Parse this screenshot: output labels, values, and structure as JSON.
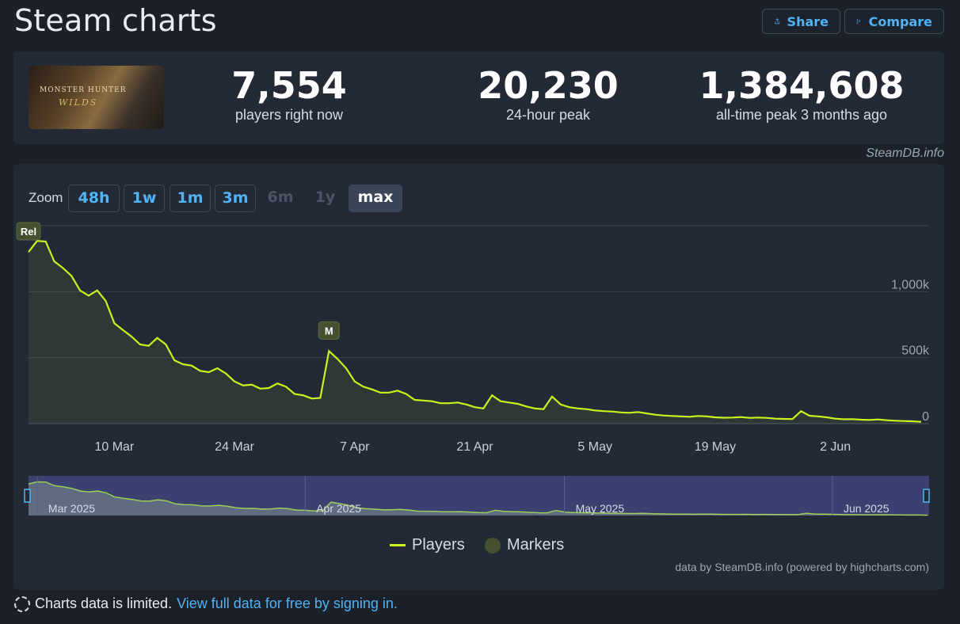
{
  "header": {
    "title": "Steam charts",
    "share_label": "Share",
    "compare_label": "Compare"
  },
  "stats": {
    "game_logo_text": "MONSTER HUNTER",
    "game_logo_sub": "WILDS",
    "now_value": "7,554",
    "now_label": "players right now",
    "peak24_value": "20,230",
    "peak24_label": "24-hour peak",
    "alltime_value": "1,384,608",
    "alltime_label": "all-time peak 3 months ago"
  },
  "credit": "SteamDB.info",
  "zoom": {
    "label": "Zoom",
    "buttons": [
      {
        "label": "48h",
        "state": "enabled"
      },
      {
        "label": "1w",
        "state": "enabled"
      },
      {
        "label": "1m",
        "state": "enabled"
      },
      {
        "label": "3m",
        "state": "enabled"
      },
      {
        "label": "6m",
        "state": "disabled"
      },
      {
        "label": "1y",
        "state": "disabled"
      },
      {
        "label": "max",
        "state": "active"
      }
    ]
  },
  "chart_data": {
    "type": "line",
    "series": [
      {
        "name": "Players",
        "color": "#cbf21d"
      }
    ],
    "markers": [
      {
        "label": "Rel",
        "date": "2025-02-28"
      },
      {
        "label": "M",
        "date": "2025-04-04"
      }
    ],
    "x_ticks": [
      "10 Mar",
      "24 Mar",
      "7 Apr",
      "21 Apr",
      "5 May",
      "19 May",
      "2 Jun"
    ],
    "y_ticks": [
      "0",
      "500k",
      "1,000k"
    ],
    "ylim": [
      0,
      1500000
    ],
    "grid": true,
    "points": [
      [
        "2025-02-28",
        1300000
      ],
      [
        "2025-03-01",
        1385000
      ],
      [
        "2025-03-02",
        1380000
      ],
      [
        "2025-03-03",
        1230000
      ],
      [
        "2025-03-04",
        1180000
      ],
      [
        "2025-03-05",
        1120000
      ],
      [
        "2025-03-06",
        1010000
      ],
      [
        "2025-03-07",
        970000
      ],
      [
        "2025-03-08",
        1010000
      ],
      [
        "2025-03-09",
        930000
      ],
      [
        "2025-03-10",
        760000
      ],
      [
        "2025-03-11",
        710000
      ],
      [
        "2025-03-12",
        660000
      ],
      [
        "2025-03-13",
        600000
      ],
      [
        "2025-03-14",
        590000
      ],
      [
        "2025-03-15",
        650000
      ],
      [
        "2025-03-16",
        600000
      ],
      [
        "2025-03-17",
        480000
      ],
      [
        "2025-03-18",
        450000
      ],
      [
        "2025-03-19",
        440000
      ],
      [
        "2025-03-20",
        400000
      ],
      [
        "2025-03-21",
        390000
      ],
      [
        "2025-03-22",
        420000
      ],
      [
        "2025-03-23",
        380000
      ],
      [
        "2025-03-24",
        320000
      ],
      [
        "2025-03-25",
        290000
      ],
      [
        "2025-03-26",
        295000
      ],
      [
        "2025-03-27",
        265000
      ],
      [
        "2025-03-28",
        270000
      ],
      [
        "2025-03-29",
        305000
      ],
      [
        "2025-03-30",
        280000
      ],
      [
        "2025-03-31",
        225000
      ],
      [
        "2025-04-01",
        215000
      ],
      [
        "2025-04-02",
        190000
      ],
      [
        "2025-04-03",
        195000
      ],
      [
        "2025-04-04",
        550000
      ],
      [
        "2025-04-05",
        490000
      ],
      [
        "2025-04-06",
        420000
      ],
      [
        "2025-04-07",
        320000
      ],
      [
        "2025-04-08",
        280000
      ],
      [
        "2025-04-09",
        260000
      ],
      [
        "2025-04-10",
        235000
      ],
      [
        "2025-04-11",
        235000
      ],
      [
        "2025-04-12",
        250000
      ],
      [
        "2025-04-13",
        225000
      ],
      [
        "2025-04-14",
        180000
      ],
      [
        "2025-04-15",
        175000
      ],
      [
        "2025-04-16",
        170000
      ],
      [
        "2025-04-17",
        155000
      ],
      [
        "2025-04-18",
        155000
      ],
      [
        "2025-04-19",
        160000
      ],
      [
        "2025-04-20",
        145000
      ],
      [
        "2025-04-21",
        125000
      ],
      [
        "2025-04-22",
        115000
      ],
      [
        "2025-04-23",
        215000
      ],
      [
        "2025-04-24",
        170000
      ],
      [
        "2025-04-25",
        160000
      ],
      [
        "2025-04-26",
        150000
      ],
      [
        "2025-04-27",
        130000
      ],
      [
        "2025-04-28",
        115000
      ],
      [
        "2025-04-29",
        110000
      ],
      [
        "2025-04-30",
        205000
      ],
      [
        "2025-05-01",
        145000
      ],
      [
        "2025-05-02",
        125000
      ],
      [
        "2025-05-03",
        115000
      ],
      [
        "2025-05-04",
        110000
      ],
      [
        "2025-05-05",
        100000
      ],
      [
        "2025-05-06",
        95000
      ],
      [
        "2025-05-07",
        92000
      ],
      [
        "2025-05-08",
        85000
      ],
      [
        "2025-05-09",
        82000
      ],
      [
        "2025-05-10",
        88000
      ],
      [
        "2025-05-11",
        78000
      ],
      [
        "2025-05-12",
        68000
      ],
      [
        "2025-05-13",
        62000
      ],
      [
        "2025-05-14",
        58000
      ],
      [
        "2025-05-15",
        55000
      ],
      [
        "2025-05-16",
        52000
      ],
      [
        "2025-05-17",
        58000
      ],
      [
        "2025-05-18",
        55000
      ],
      [
        "2025-05-19",
        48000
      ],
      [
        "2025-05-20",
        45000
      ],
      [
        "2025-05-21",
        46000
      ],
      [
        "2025-05-22",
        50000
      ],
      [
        "2025-05-23",
        44000
      ],
      [
        "2025-05-24",
        46000
      ],
      [
        "2025-05-25",
        44000
      ],
      [
        "2025-05-26",
        38000
      ],
      [
        "2025-05-27",
        36000
      ],
      [
        "2025-05-28",
        35000
      ],
      [
        "2025-05-29",
        95000
      ],
      [
        "2025-05-30",
        60000
      ],
      [
        "2025-05-31",
        55000
      ],
      [
        "2025-06-01",
        48000
      ],
      [
        "2025-06-02",
        38000
      ],
      [
        "2025-06-03",
        33000
      ],
      [
        "2025-06-04",
        34000
      ],
      [
        "2025-06-05",
        30000
      ],
      [
        "2025-06-06",
        28000
      ],
      [
        "2025-06-07",
        32000
      ],
      [
        "2025-06-08",
        26000
      ],
      [
        "2025-06-09",
        22000
      ],
      [
        "2025-06-10",
        20000
      ],
      [
        "2025-06-11",
        18000
      ],
      [
        "2025-06-12",
        14000
      ]
    ],
    "navigator_labels": [
      "Mar 2025",
      "Apr 2025",
      "May 2025",
      "Jun 2025"
    ]
  },
  "legend": {
    "players": "Players",
    "markers": "Markers"
  },
  "powered_by": "data by SteamDB.info (powered by highcharts.com)",
  "notice": {
    "text": "Charts data is limited.",
    "link": "View full data for free by signing in."
  },
  "colors": {
    "accent": "#4fb3f5",
    "line": "#cbf21d",
    "background": "#1b2029",
    "panel": "#232a36"
  }
}
